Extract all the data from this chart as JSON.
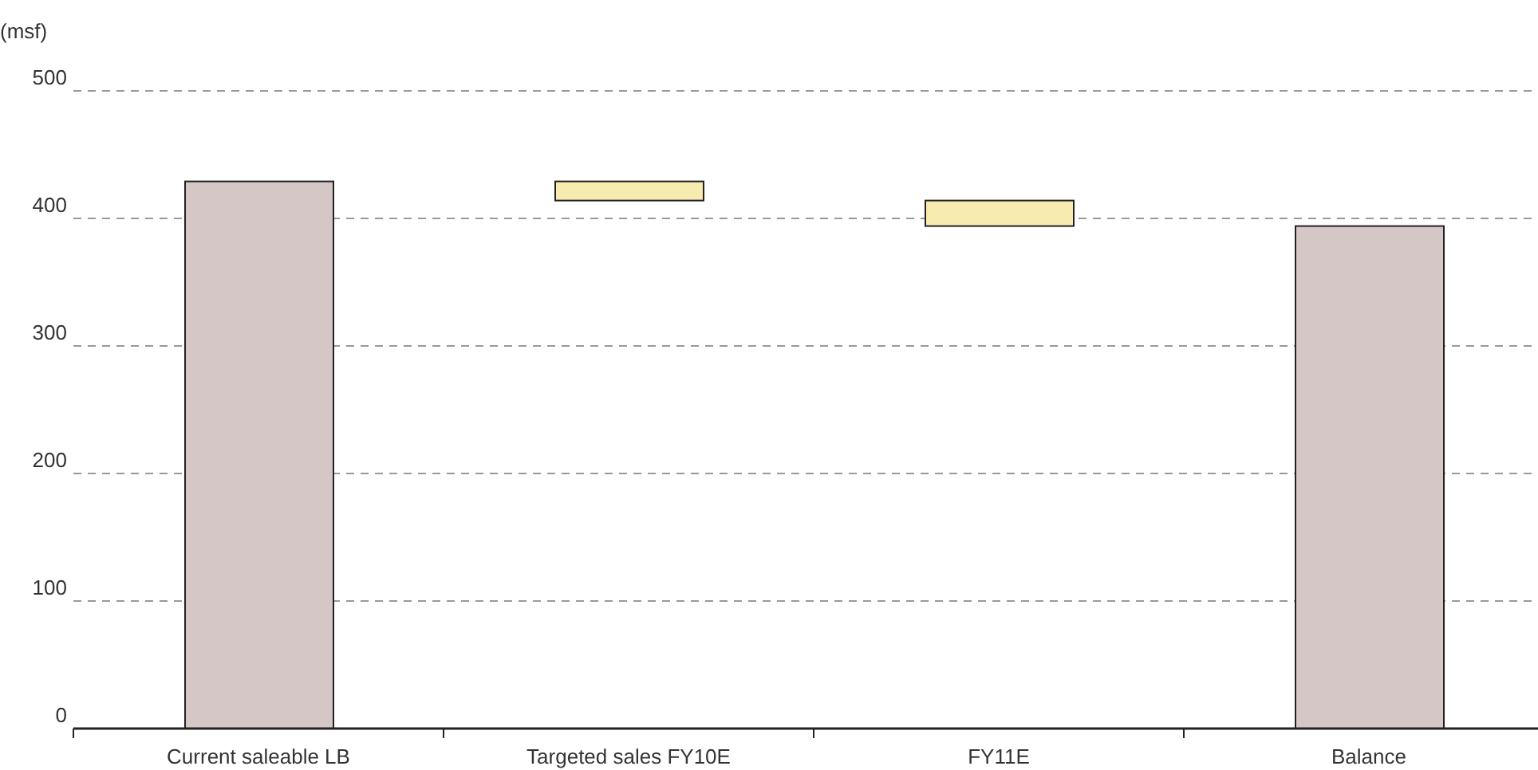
{
  "chart_data": {
    "type": "bar",
    "ylabel": "(msf)",
    "categories": [
      "Current saleable LB",
      "Targeted sales FY10E",
      "FY11E",
      "Balance"
    ],
    "values": [
      429,
      15,
      20,
      394
    ],
    "base": [
      0,
      414,
      394,
      0
    ],
    "colors": [
      "#d6c7c7",
      "#f7ebb0",
      "#f7ebb0",
      "#d6c7c7"
    ],
    "ylim": [
      0,
      500
    ],
    "yticks": [
      0,
      100,
      200,
      300,
      400,
      500
    ],
    "grid": "y"
  }
}
